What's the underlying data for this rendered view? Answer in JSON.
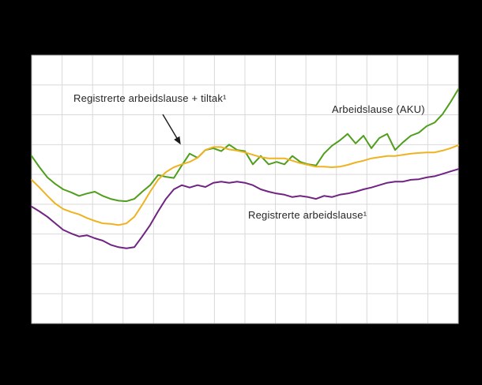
{
  "figure": {
    "background_color": "#000000",
    "plot_background_color": "#ffffff",
    "grid_color": "#d9d9d9",
    "plot_border_color": "#b3b3b3",
    "annotation_arrow_color": "#1a1a1a"
  },
  "annotations": {
    "tiltak_label": "Registrerte arbeidslause + tiltak¹",
    "aku_label": "Arbeidslause (AKU)",
    "registrerte_label": "Registrerte arbeidslause¹"
  },
  "chart_data": {
    "type": "line",
    "title": "",
    "xlabel": "",
    "ylabel": "",
    "x_axis": {
      "tick_labels_visible": false
    },
    "y_axis": {
      "tick_labels_visible": false,
      "ylim": [
        0,
        4.5
      ],
      "gridline_step": 0.5
    },
    "grid": {
      "visible": true,
      "vertical_divisions": 14,
      "horizontal_divisions": 9
    },
    "legend_position": "labels-inside-plot",
    "series": [
      {
        "name": "Arbeidslause (AKU)",
        "color": "#4f9e1c",
        "values": [
          2.81,
          2.62,
          2.45,
          2.34,
          2.25,
          2.2,
          2.14,
          2.18,
          2.21,
          2.14,
          2.09,
          2.06,
          2.05,
          2.09,
          2.21,
          2.32,
          2.49,
          2.46,
          2.44,
          2.65,
          2.85,
          2.78,
          2.91,
          2.94,
          2.89,
          3.0,
          2.91,
          2.89,
          2.67,
          2.81,
          2.67,
          2.71,
          2.67,
          2.81,
          2.71,
          2.67,
          2.65,
          2.85,
          2.98,
          3.07,
          3.18,
          3.02,
          3.15,
          2.94,
          3.11,
          3.18,
          2.91,
          3.04,
          3.15,
          3.2,
          3.31,
          3.37,
          3.51,
          3.71,
          3.93
        ]
      },
      {
        "name": "Registrerte arbeidslause + tiltak",
        "color": "#eeb320",
        "values": [
          2.41,
          2.28,
          2.14,
          2.01,
          1.92,
          1.87,
          1.83,
          1.77,
          1.72,
          1.68,
          1.67,
          1.65,
          1.68,
          1.79,
          1.99,
          2.21,
          2.41,
          2.54,
          2.62,
          2.67,
          2.71,
          2.78,
          2.91,
          2.96,
          2.96,
          2.92,
          2.9,
          2.87,
          2.83,
          2.79,
          2.77,
          2.77,
          2.77,
          2.73,
          2.69,
          2.66,
          2.63,
          2.63,
          2.62,
          2.63,
          2.66,
          2.7,
          2.73,
          2.77,
          2.79,
          2.81,
          2.81,
          2.83,
          2.85,
          2.86,
          2.87,
          2.87,
          2.9,
          2.94,
          2.99
        ]
      },
      {
        "name": "Registrerte arbeidslause",
        "color": "#702382",
        "values": [
          1.96,
          1.88,
          1.79,
          1.68,
          1.57,
          1.51,
          1.46,
          1.48,
          1.43,
          1.39,
          1.32,
          1.28,
          1.26,
          1.28,
          1.46,
          1.65,
          1.88,
          2.09,
          2.25,
          2.32,
          2.28,
          2.32,
          2.29,
          2.36,
          2.38,
          2.36,
          2.38,
          2.36,
          2.32,
          2.25,
          2.21,
          2.18,
          2.16,
          2.12,
          2.14,
          2.12,
          2.09,
          2.14,
          2.12,
          2.16,
          2.18,
          2.21,
          2.25,
          2.28,
          2.32,
          2.36,
          2.38,
          2.38,
          2.41,
          2.42,
          2.45,
          2.47,
          2.51,
          2.55,
          2.59
        ]
      }
    ]
  }
}
